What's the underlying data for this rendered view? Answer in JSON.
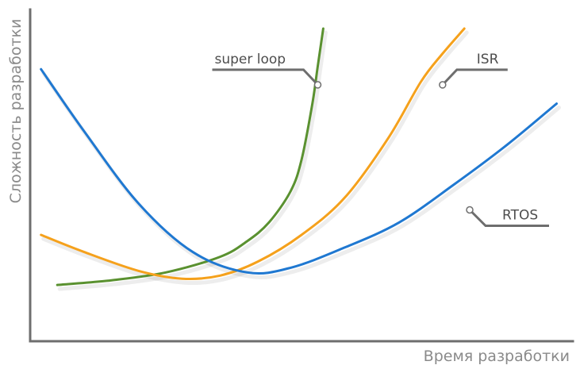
{
  "chart_data": {
    "type": "line",
    "xlabel": "Время разработки",
    "ylabel": "Сложность разработки",
    "xlim": [
      0,
      100
    ],
    "ylim": [
      0,
      100
    ],
    "grid": false,
    "legend": "none",
    "series": [
      {
        "name": "super loop",
        "color": "#5a9130",
        "x": [
          5,
          15,
          25,
          35,
          40,
          44,
          48,
          50,
          52,
          53,
          54
        ],
        "y": [
          18,
          19.5,
          22,
          27,
          32,
          38,
          48,
          58,
          76,
          88,
          100
        ]
      },
      {
        "name": "ISR",
        "color": "#f5a11c",
        "x": [
          2,
          10,
          20,
          28,
          35,
          42,
          50,
          58,
          66,
          72,
          76,
          80
        ],
        "y": [
          34,
          28.5,
          22.5,
          20,
          21,
          25.5,
          34,
          46,
          65,
          83,
          92,
          100
        ]
      },
      {
        "name": "RTOS",
        "color": "#1f78d1",
        "x": [
          2,
          10,
          20,
          30,
          40,
          48,
          58,
          68,
          78,
          88,
          97
        ],
        "y": [
          87,
          67,
          44,
          28.5,
          22,
          23.5,
          30,
          38,
          50,
          63,
          76
        ]
      }
    ],
    "annotations": [
      {
        "series": "super loop",
        "text": "super loop",
        "x": 53,
        "y": 82
      },
      {
        "series": "ISR",
        "text": "ISR",
        "x": 76,
        "y": 82
      },
      {
        "series": "RTOS",
        "text": "RTOS",
        "x": 81,
        "y": 42
      }
    ]
  }
}
